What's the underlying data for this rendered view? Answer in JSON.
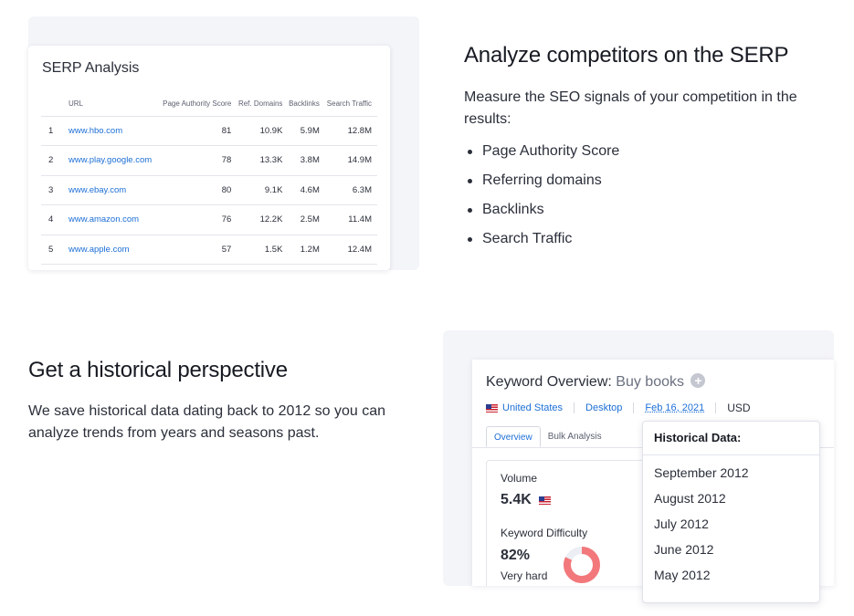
{
  "serp": {
    "title": "SERP Analysis",
    "columns": [
      "URL",
      "Page Authority Score",
      "Ref. Domains",
      "Backlinks",
      "Search Traffic"
    ],
    "rows": [
      [
        "1",
        "www.hbo.com",
        "81",
        "10.9K",
        "5.9M",
        "12.8M"
      ],
      [
        "2",
        "www.play.google.com",
        "78",
        "13.3K",
        "3.8M",
        "14.9M"
      ],
      [
        "3",
        "www.ebay.com",
        "80",
        "9.1K",
        "4.6M",
        "6.3M"
      ],
      [
        "4",
        "www.amazon.com",
        "76",
        "12.2K",
        "2.5M",
        "11.4M"
      ],
      [
        "5",
        "www.apple.com",
        "57",
        "1.5K",
        "1.2M",
        "12.4M"
      ]
    ]
  },
  "competitors": {
    "heading": "Analyze competitors on the SERP",
    "description": "Measure the SEO signals of your competition in the results:",
    "features": [
      "Page Authority Score",
      "Referring domains",
      "Backlinks",
      "Search Traffic"
    ]
  },
  "historical": {
    "heading": "Get a historical perspective",
    "description": "We save historical data dating back to 2012 so you can analyze trends from years and seasons past."
  },
  "keyword_overview": {
    "title_prefix": "Keyword Overview:",
    "keyword": "Buy books",
    "country": "United States",
    "device": "Desktop",
    "date": "Feb 16, 2021",
    "currency": "USD",
    "tabs": [
      "Overview",
      "Bulk Analysis"
    ],
    "volume_label": "Volume",
    "volume_value": "5.4K",
    "difficulty_label": "Keyword Difficulty",
    "difficulty_value": "82%",
    "difficulty_percent": 82,
    "difficulty_text": "Very hard",
    "difficulty_color": "#f2787c"
  },
  "historical_dropdown": {
    "title": "Historical Data:",
    "items": [
      "September 2012",
      "August 2012",
      "July 2012",
      "June 2012",
      "May 2012"
    ]
  }
}
